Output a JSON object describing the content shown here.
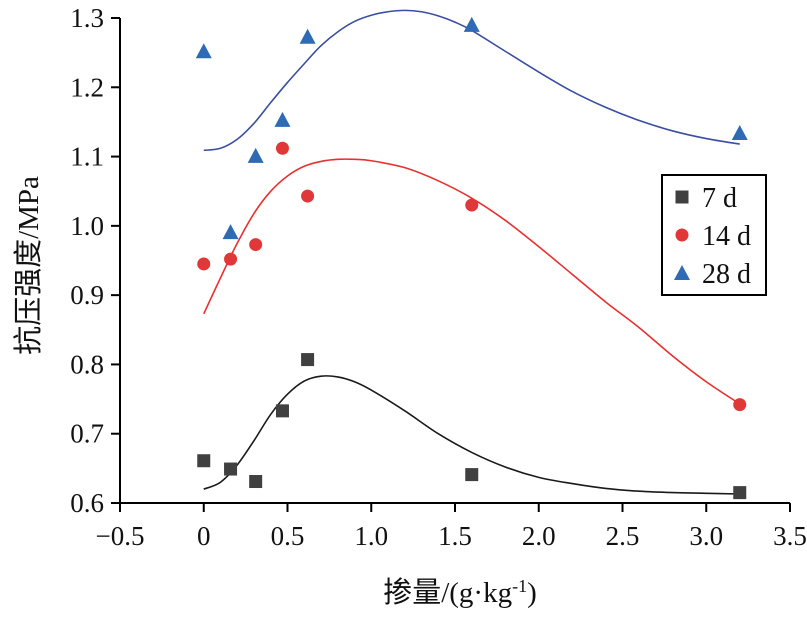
{
  "chart_data": {
    "type": "scatter",
    "xlabel": "掺量/(g·kg",
    "xlabel_sup": "-1",
    "xlabel_end": ")",
    "ylabel": "抗压强度/MPa",
    "xlim": [
      -0.5,
      3.5
    ],
    "ylim": [
      0.6,
      1.3
    ],
    "x_ticks": [
      -0.5,
      0,
      0.5,
      1.0,
      1.5,
      2.0,
      2.5,
      3.0,
      3.5
    ],
    "x_tick_labels": [
      "−0.5",
      "0",
      "0.5",
      "1.0",
      "1.5",
      "2.0",
      "2.5",
      "3.0",
      "3.5"
    ],
    "y_ticks": [
      0.6,
      0.7,
      0.8,
      0.9,
      1.0,
      1.1,
      1.2,
      1.3
    ],
    "y_tick_labels": [
      "0.6",
      "0.7",
      "0.8",
      "0.9",
      "1.0",
      "1.1",
      "1.2",
      "1.3"
    ],
    "grid": false,
    "legend_position": "right",
    "series": [
      {
        "name": "7 d",
        "marker": "square",
        "color": "#404040",
        "line_color": "#1a1a1a",
        "points": [
          [
            0,
            0.661
          ],
          [
            0.16,
            0.649
          ],
          [
            0.31,
            0.631
          ],
          [
            0.47,
            0.733
          ],
          [
            0.62,
            0.807
          ],
          [
            1.6,
            0.641
          ],
          [
            3.2,
            0.615
          ]
        ],
        "fit": [
          [
            0,
            0.62
          ],
          [
            0.1,
            0.63
          ],
          [
            0.2,
            0.655
          ],
          [
            0.3,
            0.69
          ],
          [
            0.4,
            0.728
          ],
          [
            0.5,
            0.757
          ],
          [
            0.6,
            0.776
          ],
          [
            0.7,
            0.783
          ],
          [
            0.8,
            0.782
          ],
          [
            0.9,
            0.775
          ],
          [
            1.0,
            0.763
          ],
          [
            1.2,
            0.733
          ],
          [
            1.4,
            0.7
          ],
          [
            1.6,
            0.673
          ],
          [
            1.8,
            0.652
          ],
          [
            2.0,
            0.637
          ],
          [
            2.2,
            0.628
          ],
          [
            2.4,
            0.621
          ],
          [
            2.6,
            0.617
          ],
          [
            2.8,
            0.615
          ],
          [
            3.0,
            0.614
          ],
          [
            3.2,
            0.613
          ]
        ]
      },
      {
        "name": "14 d",
        "marker": "circle",
        "color": "#e03838",
        "line_color": "#e83030",
        "points": [
          [
            0,
            0.945
          ],
          [
            0.16,
            0.952
          ],
          [
            0.31,
            0.973
          ],
          [
            0.47,
            1.112
          ],
          [
            0.62,
            1.043
          ],
          [
            1.6,
            1.03
          ],
          [
            3.2,
            0.742
          ]
        ],
        "fit": [
          [
            0,
            0.873
          ],
          [
            0.1,
            0.925
          ],
          [
            0.2,
            0.975
          ],
          [
            0.3,
            1.018
          ],
          [
            0.4,
            1.05
          ],
          [
            0.5,
            1.072
          ],
          [
            0.6,
            1.086
          ],
          [
            0.7,
            1.093
          ],
          [
            0.8,
            1.096
          ],
          [
            0.9,
            1.096
          ],
          [
            1.0,
            1.094
          ],
          [
            1.2,
            1.084
          ],
          [
            1.4,
            1.065
          ],
          [
            1.6,
            1.04
          ],
          [
            1.8,
            1.008
          ],
          [
            2.0,
            0.97
          ],
          [
            2.2,
            0.93
          ],
          [
            2.4,
            0.89
          ],
          [
            2.6,
            0.853
          ],
          [
            2.8,
            0.812
          ],
          [
            3.0,
            0.775
          ],
          [
            3.2,
            0.743
          ]
        ]
      },
      {
        "name": "28 d",
        "marker": "triangle",
        "color": "#2f6ab4",
        "line_color": "#3a4ea0",
        "points": [
          [
            0,
            1.252
          ],
          [
            0.16,
            0.991
          ],
          [
            0.31,
            1.101
          ],
          [
            0.47,
            1.153
          ],
          [
            0.62,
            1.273
          ],
          [
            1.6,
            1.29
          ],
          [
            3.2,
            1.134
          ]
        ],
        "fit": [
          [
            0,
            1.109
          ],
          [
            0.1,
            1.112
          ],
          [
            0.2,
            1.125
          ],
          [
            0.3,
            1.148
          ],
          [
            0.4,
            1.178
          ],
          [
            0.5,
            1.207
          ],
          [
            0.6,
            1.234
          ],
          [
            0.7,
            1.26
          ],
          [
            0.8,
            1.28
          ],
          [
            0.9,
            1.295
          ],
          [
            1.0,
            1.304
          ],
          [
            1.1,
            1.309
          ],
          [
            1.2,
            1.311
          ],
          [
            1.3,
            1.309
          ],
          [
            1.4,
            1.303
          ],
          [
            1.5,
            1.294
          ],
          [
            1.6,
            1.282
          ],
          [
            1.8,
            1.252
          ],
          [
            2.0,
            1.222
          ],
          [
            2.2,
            1.194
          ],
          [
            2.4,
            1.171
          ],
          [
            2.6,
            1.152
          ],
          [
            2.8,
            1.137
          ],
          [
            3.0,
            1.126
          ],
          [
            3.2,
            1.118
          ]
        ]
      }
    ]
  }
}
